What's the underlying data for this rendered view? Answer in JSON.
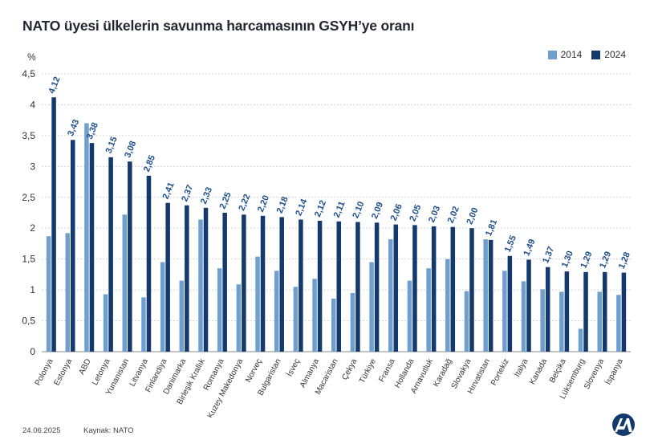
{
  "header": {
    "title": "NATO üyesi ülkelerin savunma harcamasının GSYH’ye oranı",
    "unit": "%"
  },
  "legend": {
    "items": [
      {
        "label": "2014",
        "color": "#6e9fcf"
      },
      {
        "label": "2024",
        "color": "#143a6d"
      }
    ]
  },
  "footer": {
    "date": "24.06.2025",
    "source": "Kaynak: NATO"
  },
  "chart_data": {
    "type": "bar",
    "categories": [
      "Polonya",
      "Estonya",
      "ABD",
      "Letonya",
      "Yunanistan",
      "Litvanya",
      "Finlandiya",
      "Danimarka",
      "Birleşik Krallık",
      "Romanya",
      "Kuzey Makedonya",
      "Norveç",
      "Bulgaristan",
      "İsveç",
      "Almanya",
      "Macaristan",
      "Çekya",
      "Türkiye",
      "Fransa",
      "Hollanda",
      "Arnavutluk",
      "Karadağ",
      "Slovakya",
      "Hırvatistan",
      "Portekiz",
      "İtalya",
      "Kanada",
      "Belçika",
      "Lüksemburg",
      "Slovenya",
      "İspanya"
    ],
    "series": [
      {
        "name": "2014",
        "color": "#6e9fcf",
        "values": [
          1.87,
          1.92,
          3.7,
          0.93,
          2.22,
          0.88,
          1.45,
          1.15,
          2.14,
          1.35,
          1.09,
          1.54,
          1.31,
          1.05,
          1.18,
          0.86,
          0.95,
          1.45,
          1.82,
          1.15,
          1.35,
          1.5,
          0.98,
          1.82,
          1.31,
          1.14,
          1.01,
          0.97,
          0.37,
          0.97,
          0.92
        ]
      },
      {
        "name": "2024",
        "color": "#143a6d",
        "values": [
          4.12,
          3.43,
          3.38,
          3.15,
          3.08,
          2.85,
          2.41,
          2.37,
          2.33,
          2.25,
          2.22,
          2.2,
          2.18,
          2.14,
          2.12,
          2.11,
          2.1,
          2.09,
          2.06,
          2.05,
          2.03,
          2.02,
          2.0,
          1.81,
          1.55,
          1.49,
          1.37,
          1.3,
          1.29,
          1.29,
          1.28
        ]
      }
    ],
    "data_labels": [
      "4,12",
      "3,43",
      "3,38",
      "3,15",
      "3,08",
      "2,85",
      "2,41",
      "2,37",
      "2,33",
      "2,25",
      "2,22",
      "2,20",
      "2,18",
      "2,14",
      "2,12",
      "2,11",
      "2,10",
      "2,09",
      "2,06",
      "2,05",
      "2,03",
      "2,02",
      "2,00",
      "1,81",
      "1,55",
      "1,49",
      "1,37",
      "1,30",
      "1,29",
      "1,29",
      "1,28"
    ],
    "y_ticks": [
      "0",
      "0,5",
      "1",
      "1,5",
      "2",
      "2,5",
      "3",
      "3,5",
      "4",
      "4,5"
    ],
    "ylim": [
      0,
      4.5
    ],
    "grid": true,
    "legend_position": "top-right"
  }
}
